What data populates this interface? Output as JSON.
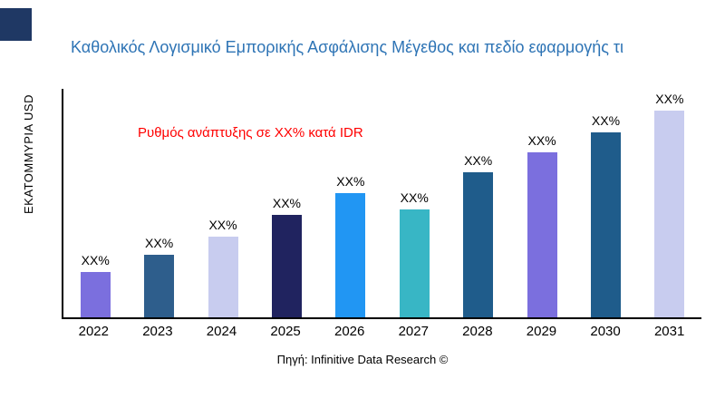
{
  "colors": {
    "title": "#2E74B5",
    "annotation": "#FF0000",
    "logo": "#1F3864",
    "axis": "#000000"
  },
  "chart_data": {
    "type": "bar",
    "title": "Καθολικός Λογισμικό Εμπορικής Ασφάλισης Μέγεθος και πεδίο εφαρμογής τι",
    "ylabel": "ΕΚΑΤΟΜΜΥΡΙΑ USD",
    "xlabel": "",
    "annotation": "Ρυθμός ανάπτυξης σε XX% κατά IDR",
    "source": "Πηγή: Infinitive Data Research ©",
    "categories": [
      "2022",
      "2023",
      "2024",
      "2025",
      "2026",
      "2027",
      "2028",
      "2029",
      "2030",
      "2031"
    ],
    "values": [
      50,
      70,
      90,
      114,
      138,
      120,
      161,
      183,
      206,
      230
    ],
    "bar_labels": [
      "XX%",
      "XX%",
      "XX%",
      "XX%",
      "XX%",
      "XX%",
      "XX%",
      "XX%",
      "XX%",
      "XX%"
    ],
    "bar_colors": [
      "#7B6FDE",
      "#2E5E8C",
      "#C8CCEF",
      "#20235F",
      "#2196F3",
      "#38B6C5",
      "#1F5C8B",
      "#7B6FDE",
      "#1F5C8B",
      "#C8CCEF"
    ],
    "ylim": [
      0,
      254
    ],
    "grid": false,
    "legend": false
  }
}
